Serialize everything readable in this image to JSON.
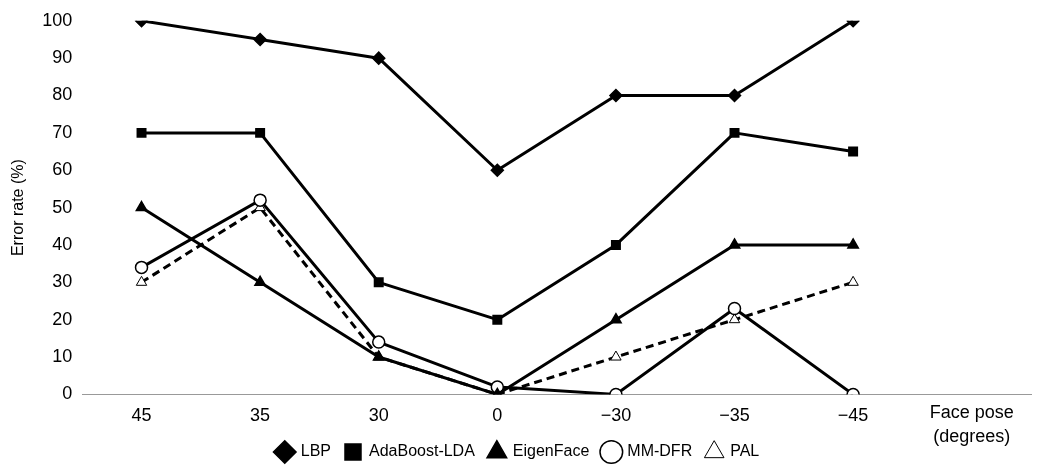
{
  "chart_data": {
    "type": "line",
    "ylabel": "Error rate (%)",
    "xlabel": "Face pose (degrees)",
    "categories": [
      "45",
      "35",
      "30",
      "0",
      "−30",
      "−35",
      "−45"
    ],
    "ylim": [
      0,
      100
    ],
    "yticks": [
      0,
      10,
      20,
      30,
      40,
      50,
      60,
      70,
      80,
      90,
      100
    ],
    "grid": false,
    "legend": "bottom",
    "series": [
      {
        "name": "LBP",
        "color": "#000000",
        "marker": "diamond",
        "values": [
          100,
          95,
          90,
          60,
          80,
          80,
          100
        ]
      },
      {
        "name": "AdaBoost-LDA",
        "color": "#000000",
        "marker": "square",
        "values": [
          70,
          70,
          30,
          20,
          40,
          70,
          65
        ]
      },
      {
        "name": "EigenFace",
        "color": "#000000",
        "marker": "triangle",
        "values": [
          50,
          30,
          10,
          0,
          20,
          40,
          40
        ]
      },
      {
        "name": "MM-DFR",
        "color": "#000000",
        "marker": "circle",
        "values": [
          34,
          52,
          14,
          2,
          0,
          23,
          0
        ]
      },
      {
        "name": "PAL",
        "color": "#000000",
        "marker": "triangle",
        "line_style": "dashed",
        "values": [
          30,
          50,
          10,
          0,
          10,
          20,
          30
        ]
      }
    ]
  }
}
